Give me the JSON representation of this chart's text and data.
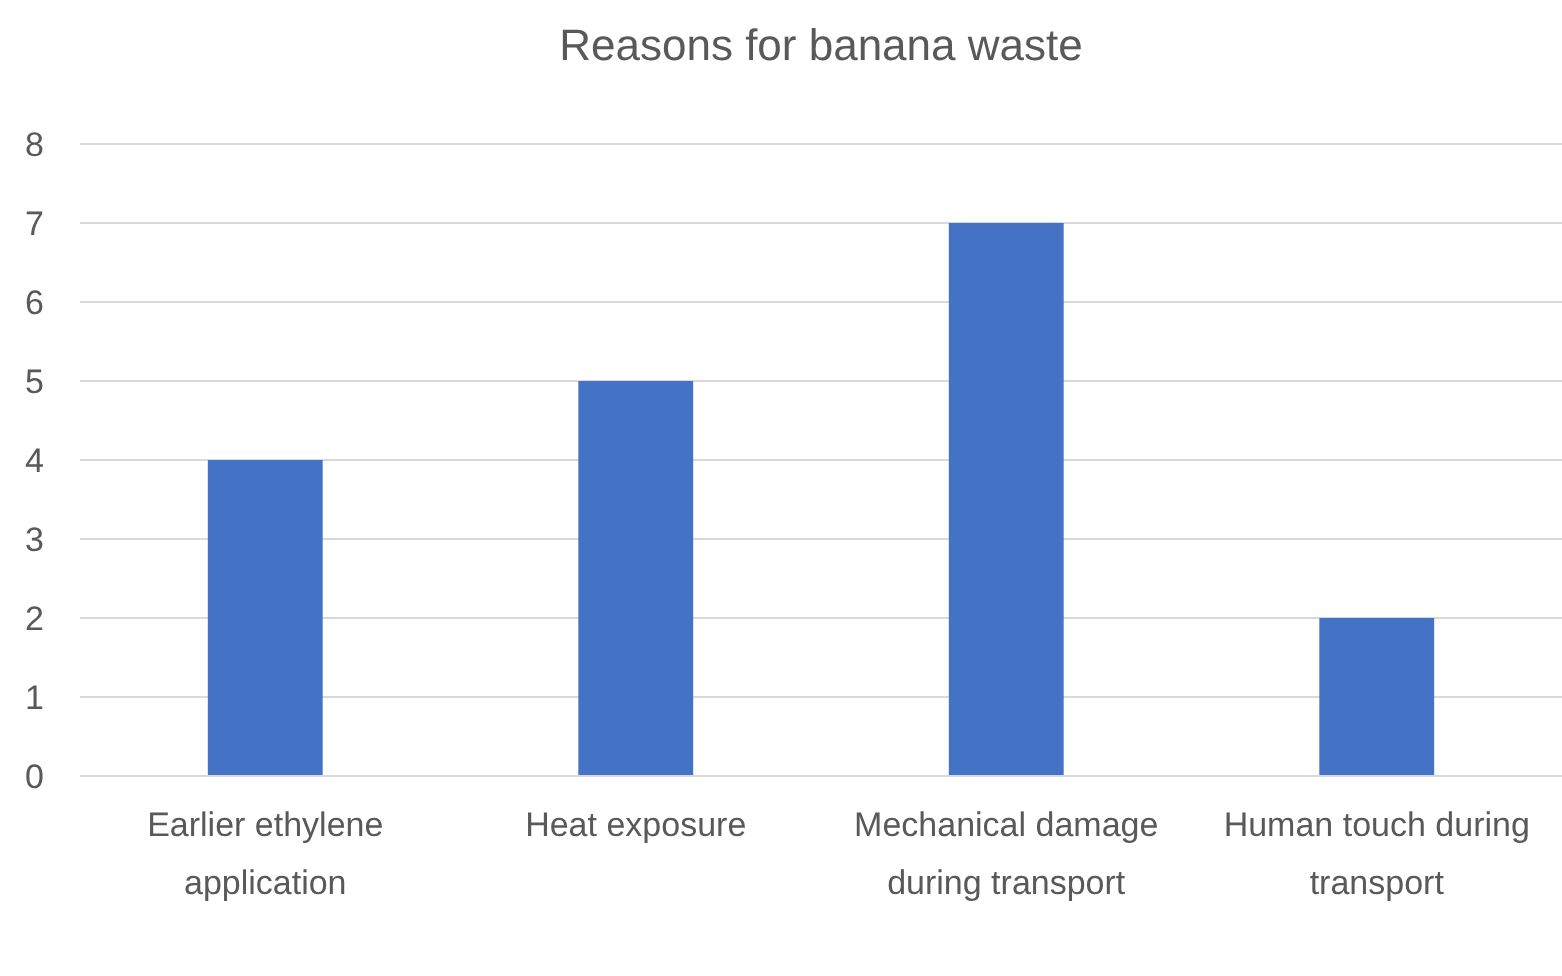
{
  "chart_data": {
    "type": "bar",
    "title": "Reasons for banana waste",
    "categories": [
      "Earlier ethylene application",
      "Heat exposure",
      "Mechanical damage during transport",
      "Human touch during transport"
    ],
    "values": [
      4,
      5,
      7,
      2
    ],
    "color": "#4472c4",
    "ylim": [
      0,
      8
    ],
    "yticks": [
      0,
      1,
      2,
      3,
      4,
      5,
      6,
      7,
      8
    ],
    "grid": "y"
  }
}
